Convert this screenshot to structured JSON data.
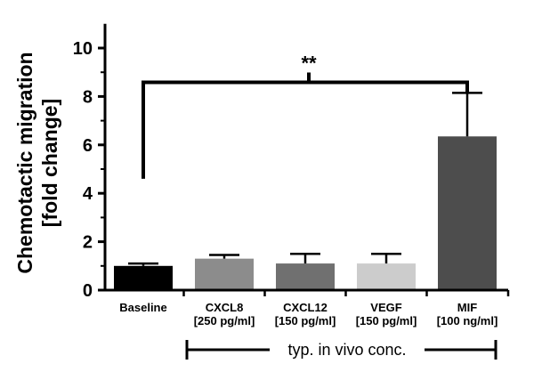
{
  "chart_data": {
    "type": "bar",
    "categories": [
      {
        "name": "Baseline",
        "conc": ""
      },
      {
        "name": "CXCL8",
        "conc": "[250 pg/ml]"
      },
      {
        "name": "CXCL12",
        "conc": "[150 pg/ml]"
      },
      {
        "name": "VEGF",
        "conc": "[150 pg/ml]"
      },
      {
        "name": "MIF",
        "conc": "[100 ng/ml]"
      }
    ],
    "values": [
      1.0,
      1.3,
      1.1,
      1.1,
      6.35
    ],
    "error_upper": [
      0.1,
      0.15,
      0.4,
      0.4,
      1.8
    ],
    "colors": [
      "#000000",
      "#8c8c8c",
      "#707070",
      "#cccccc",
      "#4d4d4d"
    ],
    "ylabel_lines": [
      "Chemotactic migration",
      "[fold change]"
    ],
    "ylim": [
      0,
      11
    ],
    "yticks": [
      0,
      2,
      4,
      6,
      8,
      10
    ],
    "significance": {
      "label": "**",
      "from": "Baseline",
      "to": "MIF",
      "y": 9.1
    },
    "group_bracket": {
      "label": "typ. in vivo conc.",
      "from": "CXCL8",
      "to": "MIF"
    }
  }
}
